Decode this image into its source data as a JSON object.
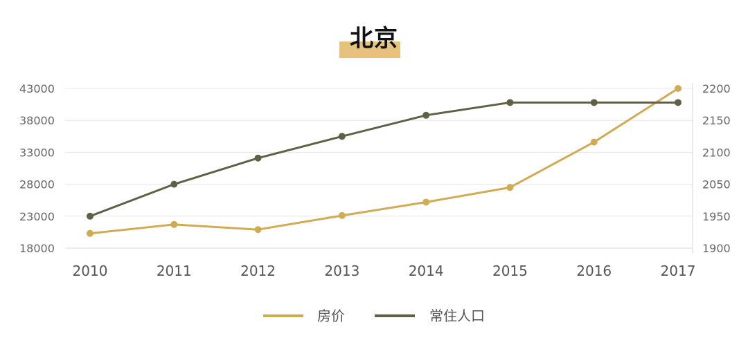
{
  "chart_data": {
    "type": "line",
    "title": "北京",
    "categories": [
      "2010",
      "2011",
      "2012",
      "2013",
      "2014",
      "2015",
      "2016",
      "2017"
    ],
    "y_left": {
      "ticks": [
        18000,
        23000,
        28000,
        33000,
        38000,
        43000
      ],
      "range": [
        18000,
        43000
      ]
    },
    "y_right": {
      "ticks": [
        1900,
        1950,
        2050,
        2100,
        2150,
        2200
      ]
    },
    "grid": true,
    "legend_position": "bottom-center",
    "series": [
      {
        "name": "房价",
        "axis": "left",
        "color": "#d1aa54",
        "values": [
          20300,
          21700,
          20900,
          23100,
          25200,
          27500,
          34600,
          43000
        ]
      },
      {
        "name": "常住人口",
        "axis": "right",
        "color": "#5f6147",
        "values": [
          1950,
          2050,
          2091,
          2125,
          2158,
          2178,
          2178,
          2178
        ]
      }
    ]
  }
}
